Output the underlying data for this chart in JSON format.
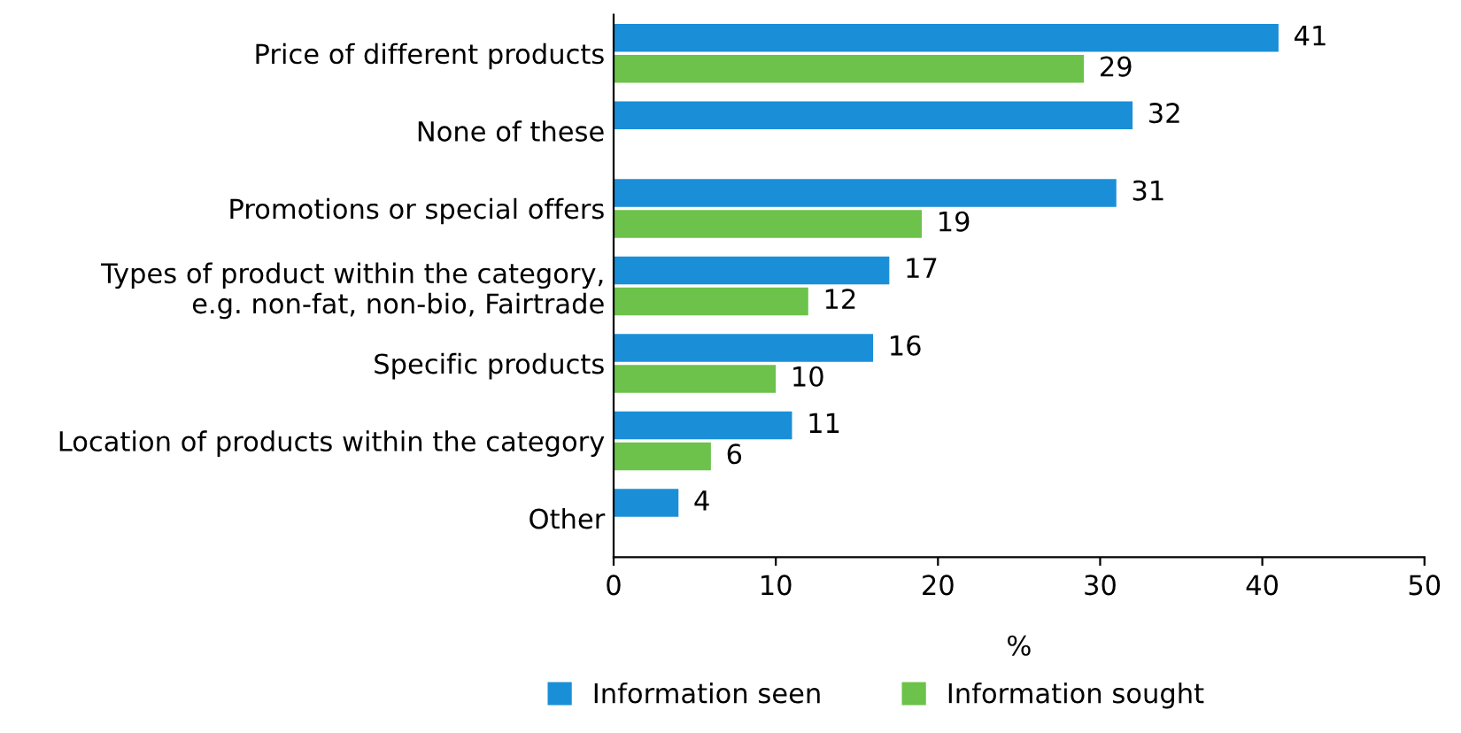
{
  "chart_data": {
    "type": "bar",
    "orientation": "horizontal",
    "xlabel": "%",
    "categories": [
      "Price of different products",
      "None of these",
      "Promotions or special offers",
      "Types of product within the category,\ne.g. non-fat, non-bio, Fairtrade",
      "Specific products",
      "Location of products within the category",
      "Other"
    ],
    "series": [
      {
        "name": "Information seen",
        "color": "#1a8fd8",
        "values": [
          41,
          32,
          31,
          17,
          16,
          11,
          4
        ]
      },
      {
        "name": "Information sought",
        "color": "#6cc24a",
        "values": [
          29,
          null,
          19,
          12,
          10,
          6,
          null
        ]
      }
    ],
    "xlim": [
      0,
      50
    ],
    "xticks": [
      0,
      10,
      20,
      30,
      40,
      50
    ],
    "data_labels": true,
    "legend": "bottom",
    "grid": false
  }
}
